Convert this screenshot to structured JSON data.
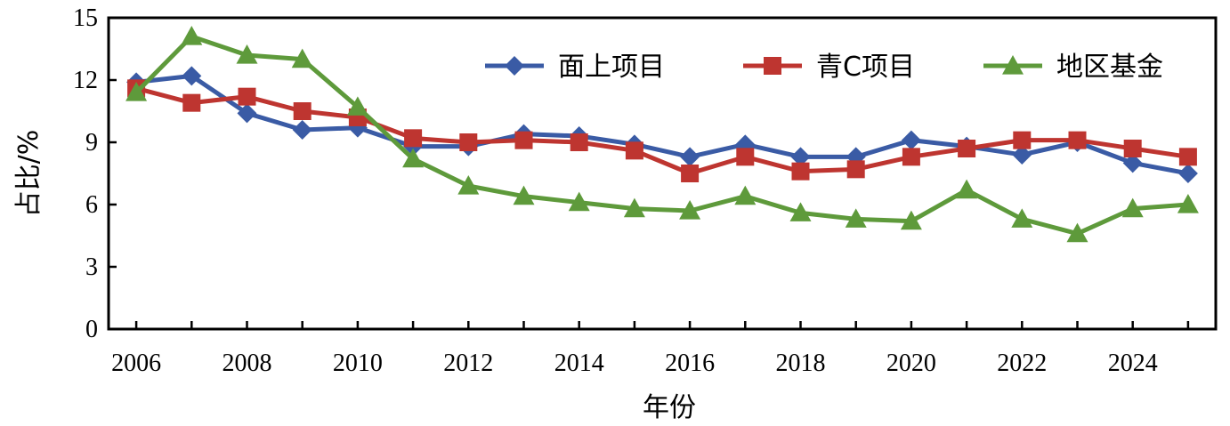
{
  "chart_data": {
    "type": "line",
    "title": "",
    "xlabel": "年份",
    "ylabel": "占比/%",
    "xlim": [
      2005.5,
      2025.5
    ],
    "ylim": [
      0,
      15
    ],
    "x_ticks": [
      "2006",
      "2008",
      "2010",
      "2012",
      "2014",
      "2016",
      "2018",
      "2020",
      "2022",
      "2024"
    ],
    "y_ticks": [
      "0",
      "3",
      "6",
      "9",
      "12",
      "15"
    ],
    "grid": false,
    "legend_position": "top-right",
    "x": [
      2006,
      2007,
      2008,
      2009,
      2010,
      2011,
      2012,
      2013,
      2014,
      2015,
      2016,
      2017,
      2018,
      2019,
      2020,
      2021,
      2022,
      2023,
      2024,
      2025
    ],
    "series": [
      {
        "name": "面上项目",
        "color": "#3A5BA5",
        "marker": "diamond",
        "values": [
          11.9,
          12.2,
          10.4,
          9.6,
          9.7,
          8.8,
          8.8,
          9.4,
          9.3,
          8.9,
          8.3,
          8.9,
          8.3,
          8.3,
          9.1,
          8.8,
          8.4,
          9.0,
          8.0,
          7.5
        ]
      },
      {
        "name": "青C项目",
        "color": "#BE3530",
        "marker": "square",
        "values": [
          11.6,
          10.9,
          11.2,
          10.5,
          10.2,
          9.2,
          9.0,
          9.1,
          9.0,
          8.6,
          7.5,
          8.3,
          7.6,
          7.7,
          8.3,
          8.7,
          9.1,
          9.1,
          8.7,
          8.3
        ]
      },
      {
        "name": "地区基金",
        "color": "#5E9A3B",
        "marker": "triangle",
        "values": [
          11.4,
          14.1,
          13.2,
          13.0,
          10.7,
          8.2,
          6.9,
          6.4,
          6.1,
          5.8,
          5.7,
          6.4,
          5.6,
          5.3,
          5.2,
          6.7,
          5.3,
          4.6,
          5.8,
          6.0
        ]
      }
    ]
  }
}
